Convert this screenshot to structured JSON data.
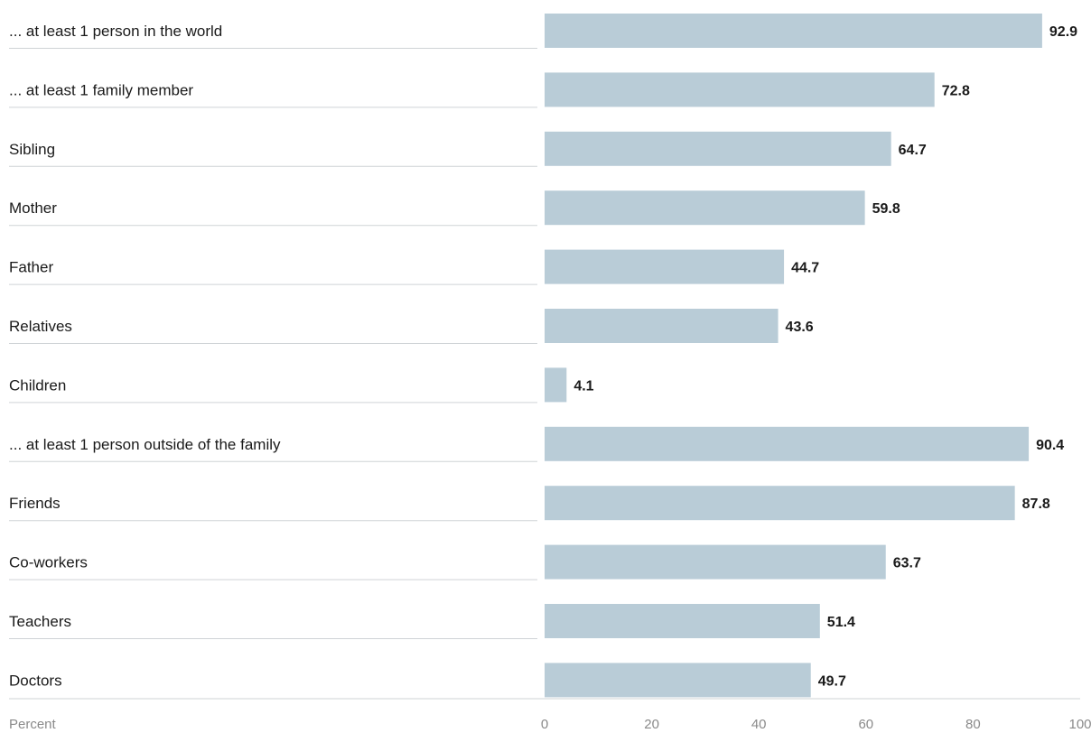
{
  "chart_data": {
    "type": "bar",
    "orientation": "horizontal",
    "categories": [
      "... at least 1 person in the world",
      "... at least 1 family member",
      "Sibling",
      "Mother",
      "Father",
      "Relatives",
      "Children",
      "... at least 1 person outside of the family",
      "Friends",
      "Co-workers",
      "Teachers",
      "Doctors"
    ],
    "values": [
      92.9,
      72.8,
      64.7,
      59.8,
      44.7,
      43.6,
      4.1,
      90.4,
      87.8,
      63.7,
      51.4,
      49.7
    ],
    "value_labels": [
      "92.9",
      "72.8",
      "64.7",
      "59.8",
      "44.7",
      "43.6",
      "4.1",
      "90.4",
      "87.8",
      "63.7",
      "51.4",
      "49.7"
    ],
    "xlabel": "Percent",
    "xlim": [
      0,
      100
    ],
    "xticks": [
      0,
      20,
      40,
      60,
      80,
      100
    ],
    "xtick_labels": [
      "0",
      "20",
      "40",
      "60",
      "80",
      "100"
    ],
    "grid": false,
    "legend": "none",
    "bar_color": "#b9ccd7",
    "separator_color": "#cfd3d6"
  }
}
